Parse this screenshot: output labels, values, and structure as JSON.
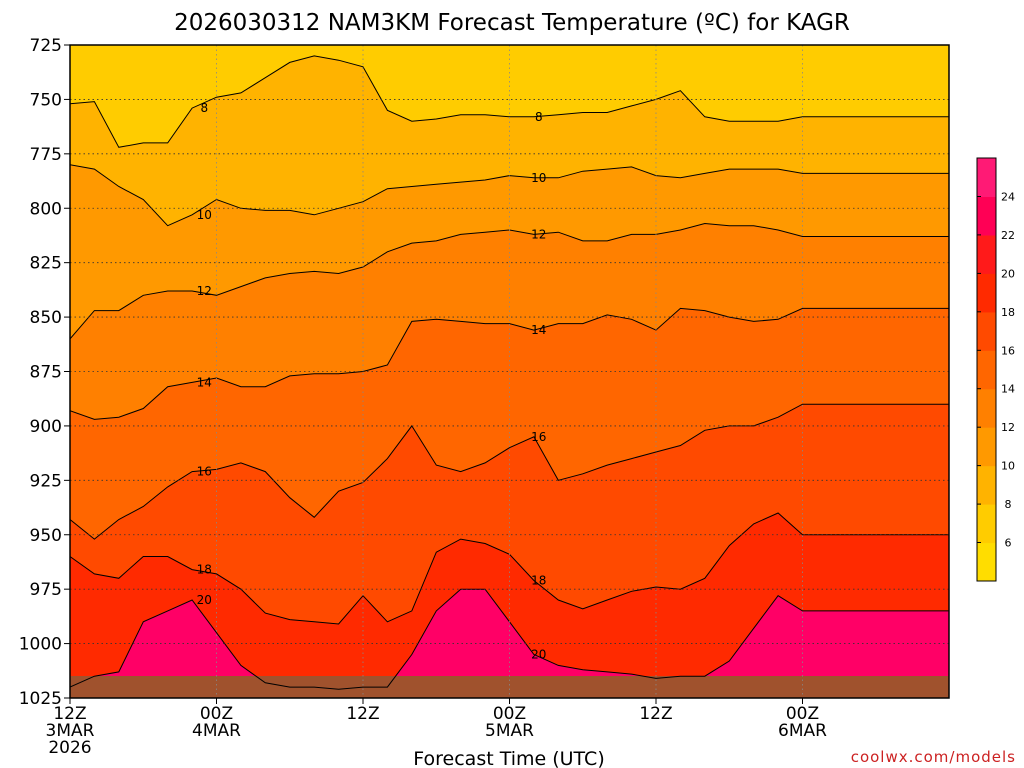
{
  "chart_data": {
    "type": "heatmap",
    "title": "2026030312 NAM3KM Forecast Temperature (ºC) for KAGR",
    "xlabel": "Forecast Time (UTC)",
    "ylabel": "",
    "credit": "coolwx.com/models",
    "y_axis": {
      "unit": "hPa",
      "ticks": [
        725,
        750,
        775,
        800,
        825,
        850,
        875,
        900,
        925,
        950,
        975,
        1000,
        1025
      ],
      "range": [
        725,
        1025
      ],
      "grid": true
    },
    "x_axis": {
      "range_hours": [
        0,
        36
      ],
      "grid": true,
      "ticks": [
        {
          "hour": 0,
          "lines": [
            "12Z",
            "3MAR",
            "2026"
          ]
        },
        {
          "hour": 6,
          "lines": [
            "00Z",
            "4MAR"
          ]
        },
        {
          "hour": 12,
          "lines": [
            "12Z"
          ]
        },
        {
          "hour": 18,
          "lines": [
            "00Z",
            "5MAR"
          ]
        },
        {
          "hour": 24,
          "lines": [
            "12Z"
          ]
        },
        {
          "hour": 30,
          "lines": [
            "00Z",
            "6MAR"
          ]
        }
      ]
    },
    "colorbar": {
      "levels": [
        4,
        6,
        8,
        10,
        12,
        14,
        16,
        18,
        20,
        22,
        24,
        26
      ],
      "tick_labels": [
        "6",
        "8",
        "10",
        "12",
        "14",
        "16",
        "18",
        "20",
        "22",
        "24"
      ],
      "colors": [
        "#ffdd00",
        "#ffcc00",
        "#ffb300",
        "#ff9900",
        "#ff8000",
        "#ff6600",
        "#ff4a00",
        "#ff2a00",
        "#ff1a1a",
        "#ff0055",
        "#ff1a75"
      ]
    },
    "contour_labels": [
      "8",
      "10",
      "12",
      "14",
      "16",
      "18",
      "20"
    ],
    "series": [
      {
        "name": "8",
        "x": [
          0,
          1,
          2,
          3,
          4,
          5,
          6,
          7,
          8,
          9,
          10,
          11,
          12,
          13,
          14,
          15,
          16,
          17,
          18,
          19,
          20,
          21,
          22,
          23,
          24,
          25,
          26,
          27,
          28,
          29,
          30
        ],
        "values": [
          752,
          751,
          772,
          770,
          770,
          754,
          749,
          747,
          740,
          733,
          730,
          732,
          735,
          755,
          760,
          759,
          757,
          757,
          758,
          758,
          757,
          756,
          756,
          753,
          750,
          746,
          758,
          760,
          760,
          760,
          758
        ]
      },
      {
        "name": "10",
        "x": [
          0,
          1,
          2,
          3,
          4,
          5,
          6,
          7,
          8,
          9,
          10,
          11,
          12,
          13,
          14,
          15,
          16,
          17,
          18,
          19,
          20,
          21,
          22,
          23,
          24,
          25,
          26,
          27,
          28,
          29,
          30
        ],
        "values": [
          780,
          782,
          790,
          796,
          808,
          803,
          796,
          800,
          801,
          801,
          803,
          800,
          797,
          791,
          790,
          789,
          788,
          787,
          785,
          786,
          786,
          783,
          782,
          781,
          785,
          786,
          784,
          782,
          782,
          782,
          784
        ]
      },
      {
        "name": "12",
        "x": [
          0,
          1,
          2,
          3,
          4,
          5,
          6,
          7,
          8,
          9,
          10,
          11,
          12,
          13,
          14,
          15,
          16,
          17,
          18,
          19,
          20,
          21,
          22,
          23,
          24,
          25,
          26,
          27,
          28,
          29,
          30
        ],
        "values": [
          860,
          847,
          847,
          840,
          838,
          838,
          840,
          836,
          832,
          830,
          829,
          830,
          827,
          820,
          816,
          815,
          812,
          811,
          810,
          812,
          811,
          815,
          815,
          812,
          812,
          810,
          807,
          808,
          808,
          810,
          813
        ]
      },
      {
        "name": "14",
        "x": [
          0,
          1,
          2,
          3,
          4,
          5,
          6,
          7,
          8,
          9,
          10,
          11,
          12,
          13,
          14,
          15,
          16,
          17,
          18,
          19,
          20,
          21,
          22,
          23,
          24,
          25,
          26,
          27,
          28,
          29,
          30
        ],
        "values": [
          893,
          897,
          896,
          892,
          882,
          880,
          878,
          882,
          882,
          877,
          876,
          876,
          875,
          872,
          852,
          851,
          852,
          853,
          853,
          856,
          853,
          853,
          849,
          851,
          856,
          846,
          847,
          850,
          852,
          851,
          846
        ]
      },
      {
        "name": "16",
        "x": [
          0,
          1,
          2,
          3,
          4,
          5,
          6,
          7,
          8,
          9,
          10,
          11,
          12,
          13,
          14,
          15,
          16,
          17,
          18,
          19,
          20,
          21,
          22,
          23,
          24,
          25,
          26,
          27,
          28,
          29,
          30
        ],
        "values": [
          943,
          952,
          943,
          937,
          928,
          921,
          920,
          917,
          921,
          933,
          942,
          930,
          926,
          915,
          900,
          918,
          921,
          917,
          910,
          905,
          925,
          922,
          918,
          915,
          912,
          909,
          902,
          900,
          900,
          896,
          890
        ]
      },
      {
        "name": "18",
        "x": [
          0,
          1,
          2,
          3,
          4,
          5,
          6,
          7,
          8,
          9,
          10,
          11,
          12,
          13,
          14,
          15,
          16,
          17,
          18,
          19,
          20,
          21,
          22,
          23,
          24,
          25,
          26,
          27,
          28,
          29,
          30
        ],
        "values": [
          960,
          968,
          970,
          960,
          960,
          966,
          968,
          975,
          986,
          989,
          990,
          991,
          978,
          990,
          985,
          958,
          952,
          954,
          959,
          971,
          980,
          984,
          980,
          976,
          974,
          975,
          970,
          955,
          945,
          940,
          950
        ]
      },
      {
        "name": "20",
        "x": [
          0,
          1,
          2,
          3,
          4,
          5,
          6,
          7,
          8,
          9,
          10,
          11,
          12,
          13,
          14,
          15,
          16,
          17,
          18,
          19,
          20,
          21,
          22,
          23,
          24,
          25,
          26,
          27,
          28,
          29,
          30
        ],
        "values": [
          1020,
          1015,
          1013,
          990,
          985,
          980,
          995,
          1010,
          1018,
          1020,
          1020,
          1021,
          1020,
          1020,
          1005,
          985,
          975,
          975,
          990,
          1005,
          1010,
          1012,
          1013,
          1014,
          1016,
          1015,
          1015,
          1008,
          993,
          978,
          985
        ]
      }
    ]
  }
}
